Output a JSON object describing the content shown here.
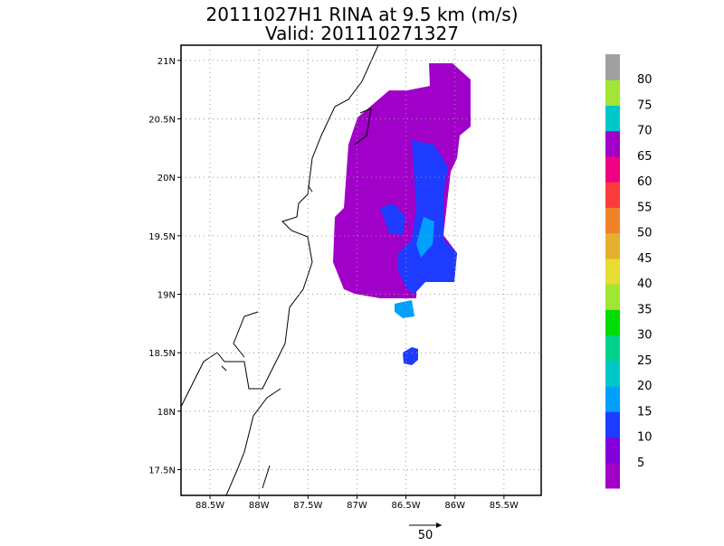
{
  "title": "20111027H1 RINA at 9.5 km (m/s)",
  "subtitle": "Valid: 201110271327",
  "map": {
    "xlim": [
      -88.796,
      -85.12
    ],
    "ylim": [
      17.28,
      21.13
    ],
    "xticks": [
      {
        "value": -88.5,
        "label": "88.5W"
      },
      {
        "value": -88,
        "label": "88W"
      },
      {
        "value": -87.5,
        "label": "87.5W"
      },
      {
        "value": -87,
        "label": "87W"
      },
      {
        "value": -86.5,
        "label": "86.5W"
      },
      {
        "value": -86,
        "label": "86W"
      },
      {
        "value": -85.5,
        "label": "85.5W"
      }
    ],
    "yticks": [
      {
        "value": 17.5,
        "label": "17.5N"
      },
      {
        "value": 18,
        "label": "18N"
      },
      {
        "value": 18.5,
        "label": "18.5N"
      },
      {
        "value": 19,
        "label": "19N"
      },
      {
        "value": 19.5,
        "label": "19.5N"
      },
      {
        "value": 20,
        "label": "20N"
      },
      {
        "value": 20.5,
        "label": "20.5N"
      },
      {
        "value": 21,
        "label": "21N"
      }
    ],
    "grid": true
  },
  "colorbar": {
    "levels": [
      5,
      10,
      15,
      20,
      25,
      30,
      35,
      40,
      45,
      50,
      55,
      60,
      65,
      70,
      75,
      80
    ],
    "colors": [
      "#a000c8",
      "#8200dc",
      "#1e3cff",
      "#00a0ff",
      "#00c8c8",
      "#00d28c",
      "#00dc00",
      "#a0e632",
      "#e6dc32",
      "#e6af2d",
      "#f08228",
      "#fa3c3c",
      "#f00082",
      "#a000c8",
      "#00c8c8",
      "#a0e632",
      "#a0a0a0"
    ]
  },
  "reference_vector": {
    "label": "50"
  }
}
